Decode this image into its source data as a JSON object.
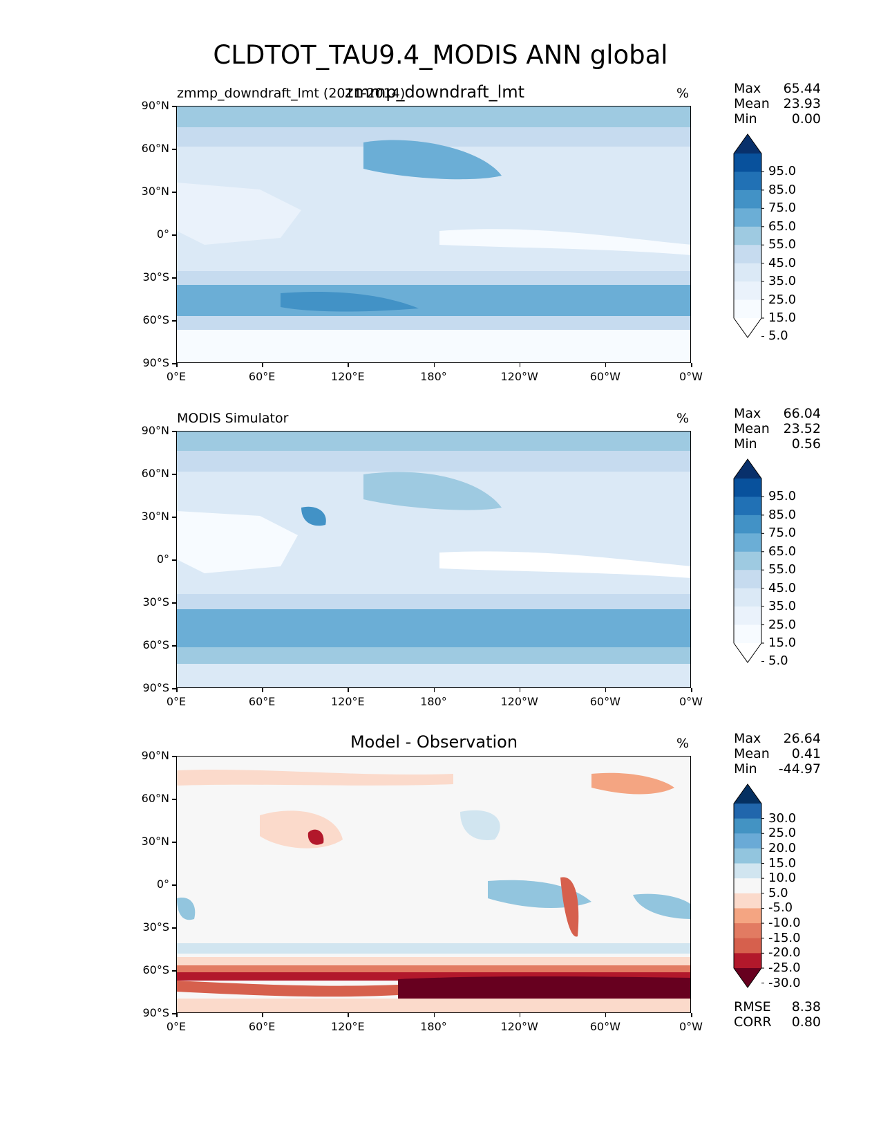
{
  "title": "CLDTOT_TAU9.4_MODIS ANN global",
  "chart_data": [
    {
      "type": "heatmap",
      "left_label": "zmmp_downdraft_lmt (2011-2014)",
      "center_title": "zmmp_downdraft_lmt",
      "unit": "%",
      "stats": [
        {
          "label": "Max",
          "value": "65.44"
        },
        {
          "label": "Mean",
          "value": "23.93"
        },
        {
          "label": "Min",
          "value": "0.00"
        }
      ],
      "colorbar": {
        "ticks": [
          "95.0",
          "85.0",
          "75.0",
          "65.0",
          "55.0",
          "45.0",
          "35.0",
          "25.0",
          "15.0",
          "5.0"
        ],
        "colors": [
          "#08306b",
          "#08519c",
          "#2171b5",
          "#4292c6",
          "#6baed6",
          "#9ecae1",
          "#c6dbef",
          "#dbe9f6",
          "#eaf2fb",
          "#f7fbff",
          "#ffffff"
        ]
      },
      "y_ticks": [
        "90°N",
        "60°N",
        "30°N",
        "0°",
        "30°S",
        "60°S",
        "90°S"
      ],
      "x_ticks": [
        "0°E",
        "60°E",
        "120°E",
        "180°",
        "120°W",
        "60°W",
        "0°W"
      ]
    },
    {
      "type": "heatmap",
      "left_label": "MODIS Simulator",
      "center_title": "",
      "unit": "%",
      "stats": [
        {
          "label": "Max",
          "value": "66.04"
        },
        {
          "label": "Mean",
          "value": "23.52"
        },
        {
          "label": "Min",
          "value": "0.56"
        }
      ],
      "colorbar": {
        "ticks": [
          "95.0",
          "85.0",
          "75.0",
          "65.0",
          "55.0",
          "45.0",
          "35.0",
          "25.0",
          "15.0",
          "5.0"
        ],
        "colors": [
          "#08306b",
          "#08519c",
          "#2171b5",
          "#4292c6",
          "#6baed6",
          "#9ecae1",
          "#c6dbef",
          "#dbe9f6",
          "#eaf2fb",
          "#f7fbff",
          "#ffffff"
        ]
      },
      "y_ticks": [
        "90°N",
        "60°N",
        "30°N",
        "0°",
        "30°S",
        "60°S",
        "90°S"
      ],
      "x_ticks": [
        "0°E",
        "60°E",
        "120°E",
        "180°",
        "120°W",
        "60°W",
        "0°W"
      ]
    },
    {
      "type": "heatmap",
      "left_label": "",
      "center_title": "Model - Observation",
      "unit": "%",
      "stats": [
        {
          "label": "Max",
          "value": "26.64"
        },
        {
          "label": "Mean",
          "value": "0.41"
        },
        {
          "label": "Min",
          "value": "-44.97"
        }
      ],
      "colorbar": {
        "ticks": [
          "30.0",
          "25.0",
          "20.0",
          "15.0",
          "10.0",
          "5.0",
          "-5.0",
          "-10.0",
          "-15.0",
          "-20.0",
          "-25.0",
          "-30.0"
        ],
        "colors": [
          "#053061",
          "#2166ac",
          "#4393c3",
          "#6aaad6",
          "#92c5de",
          "#d1e5f0",
          "#f7f7f7",
          "#fbdacb",
          "#f4a582",
          "#e27b62",
          "#d6604d",
          "#b2182b",
          "#67001f"
        ]
      },
      "y_ticks": [
        "90°N",
        "60°N",
        "30°N",
        "0°",
        "30°S",
        "60°S",
        "90°S"
      ],
      "x_ticks": [
        "0°E",
        "60°E",
        "120°E",
        "180°",
        "120°W",
        "60°W",
        "0°W"
      ],
      "metrics": [
        {
          "label": "RMSE",
          "value": "8.38"
        },
        {
          "label": "CORR",
          "value": "0.80"
        }
      ]
    }
  ]
}
